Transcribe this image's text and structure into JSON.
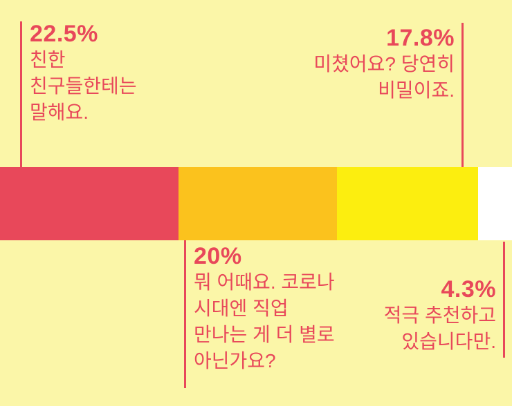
{
  "chart_data": {
    "type": "bar",
    "orientation": "horizontal-stacked",
    "unit": "%",
    "background": "#fbf6a8",
    "accent": "#e8485a",
    "legend_position": "callouts",
    "axes": "none",
    "segments": [
      {
        "value": 22.5,
        "value_label": "22.5%",
        "quote": "친한\n친구들한테는\n말해요.",
        "color": "#e8485a",
        "label_position": "top-left"
      },
      {
        "value": 20,
        "value_label": "20%",
        "quote": "뭐 어때요. 코로나\n시대엔 직업\n만나는 게 더 별로\n아닌가요?",
        "color": "#fbc21d",
        "label_position": "bottom-middle"
      },
      {
        "value": 17.8,
        "value_label": "17.8%",
        "quote": "미쳤어요? 당연히\n비밀이죠.",
        "color": "#fcee0f",
        "label_position": "top-right"
      },
      {
        "value": 4.3,
        "value_label": "4.3%",
        "quote": "적극 추천하고\n있습니다만.",
        "color": "#ffffff",
        "label_position": "bottom-right"
      }
    ]
  }
}
